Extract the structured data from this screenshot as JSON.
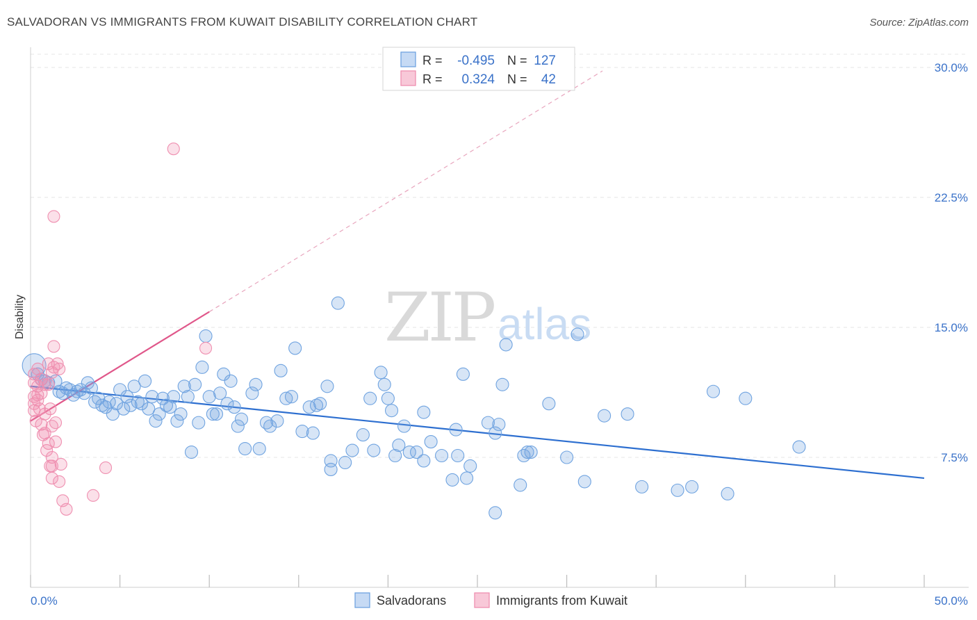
{
  "title": "SALVADORAN VS IMMIGRANTS FROM KUWAIT DISABILITY CORRELATION CHART",
  "source": "Source: ZipAtlas.com",
  "watermark": {
    "part1": "ZIP",
    "part2": "atlas"
  },
  "legend_top": {
    "rows": [
      {
        "r_label": "R =",
        "r_value": "-0.495",
        "n_label": "N =",
        "n_value": "127"
      },
      {
        "r_label": "R =",
        "r_value": "0.324",
        "n_label": "N =",
        "n_value": "42"
      }
    ]
  },
  "legend_bottom": {
    "items": [
      "Salvadorans",
      "Immigrants from Kuwait"
    ]
  },
  "colors": {
    "blue": "#6fa3e0",
    "blue_line": "#2d6fd0",
    "pink": "#ef8fb0",
    "pink_line": "#e0578a",
    "axis_text": "#3a72c9"
  },
  "chart_data": {
    "type": "scatter",
    "title": "SALVADORAN VS IMMIGRANTS FROM KUWAIT DISABILITY CORRELATION CHART",
    "xlabel": "",
    "ylabel": "Disability",
    "xlim": [
      0,
      50
    ],
    "ylim": [
      0,
      31
    ],
    "x_tick_labels": [
      "0.0%",
      "50.0%"
    ],
    "y_ticks": [
      7.5,
      15.0,
      22.5,
      30.0
    ],
    "y_tick_labels": [
      "7.5%",
      "15.0%",
      "22.5%",
      "30.0%"
    ],
    "grid": true,
    "series": [
      {
        "name": "Salvadorans",
        "color": "#6fa3e0",
        "R": -0.495,
        "N": 127,
        "trend": {
          "x": [
            0,
            50
          ],
          "y": [
            11.6,
            6.3
          ]
        },
        "points": [
          [
            0.2,
            12.8
          ],
          [
            0.4,
            12.3
          ],
          [
            0.6,
            12.0
          ],
          [
            0.8,
            11.9
          ],
          [
            1.0,
            11.8
          ],
          [
            1.4,
            11.9
          ],
          [
            1.6,
            11.3
          ],
          [
            1.8,
            11.2
          ],
          [
            2.0,
            11.5
          ],
          [
            2.2,
            11.4
          ],
          [
            2.4,
            11.1
          ],
          [
            2.6,
            11.3
          ],
          [
            2.8,
            11.4
          ],
          [
            3.0,
            11.2
          ],
          [
            3.2,
            11.8
          ],
          [
            3.4,
            11.5
          ],
          [
            3.6,
            10.7
          ],
          [
            3.8,
            10.9
          ],
          [
            4.0,
            10.5
          ],
          [
            4.2,
            10.4
          ],
          [
            4.4,
            10.7
          ],
          [
            4.6,
            10.0
          ],
          [
            4.8,
            10.6
          ],
          [
            5.0,
            11.4
          ],
          [
            5.2,
            10.3
          ],
          [
            5.4,
            11.0
          ],
          [
            5.6,
            10.5
          ],
          [
            5.8,
            11.6
          ],
          [
            6.0,
            10.7
          ],
          [
            6.2,
            10.6
          ],
          [
            6.4,
            11.9
          ],
          [
            6.6,
            10.3
          ],
          [
            6.8,
            11.0
          ],
          [
            7.0,
            9.6
          ],
          [
            7.2,
            10.0
          ],
          [
            7.4,
            10.9
          ],
          [
            7.6,
            10.5
          ],
          [
            7.8,
            10.4
          ],
          [
            8.0,
            11.0
          ],
          [
            8.2,
            9.6
          ],
          [
            8.4,
            10.0
          ],
          [
            8.6,
            11.6
          ],
          [
            8.8,
            11.0
          ],
          [
            9.0,
            7.8
          ],
          [
            9.2,
            11.7
          ],
          [
            9.4,
            9.5
          ],
          [
            9.6,
            12.7
          ],
          [
            9.8,
            14.5
          ],
          [
            10.0,
            11.0
          ],
          [
            10.2,
            10.0
          ],
          [
            10.4,
            10.0
          ],
          [
            10.6,
            11.2
          ],
          [
            10.8,
            12.3
          ],
          [
            11.0,
            10.6
          ],
          [
            11.2,
            11.9
          ],
          [
            11.4,
            10.4
          ],
          [
            11.6,
            9.3
          ],
          [
            11.8,
            9.7
          ],
          [
            12.0,
            8.0
          ],
          [
            12.4,
            11.2
          ],
          [
            12.6,
            11.7
          ],
          [
            12.8,
            8.0
          ],
          [
            13.2,
            9.5
          ],
          [
            13.4,
            9.3
          ],
          [
            13.8,
            9.6
          ],
          [
            14.0,
            12.5
          ],
          [
            14.3,
            10.9
          ],
          [
            14.6,
            11.0
          ],
          [
            14.8,
            13.8
          ],
          [
            15.2,
            9.0
          ],
          [
            15.6,
            10.4
          ],
          [
            15.8,
            8.9
          ],
          [
            16.0,
            10.5
          ],
          [
            16.2,
            10.6
          ],
          [
            16.6,
            11.6
          ],
          [
            16.8,
            7.3
          ],
          [
            16.8,
            6.8
          ],
          [
            17.2,
            16.4
          ],
          [
            17.6,
            7.2
          ],
          [
            18.0,
            7.9
          ],
          [
            18.6,
            8.8
          ],
          [
            19.0,
            10.9
          ],
          [
            19.2,
            7.9
          ],
          [
            19.6,
            12.4
          ],
          [
            19.8,
            11.7
          ],
          [
            20.0,
            10.9
          ],
          [
            20.2,
            10.2
          ],
          [
            20.4,
            7.6
          ],
          [
            20.6,
            8.2
          ],
          [
            20.9,
            9.3
          ],
          [
            21.2,
            7.8
          ],
          [
            21.6,
            7.8
          ],
          [
            22.0,
            10.1
          ],
          [
            22.0,
            7.3
          ],
          [
            22.4,
            8.4
          ],
          [
            23.0,
            7.6
          ],
          [
            23.6,
            6.2
          ],
          [
            23.8,
            9.1
          ],
          [
            23.9,
            7.6
          ],
          [
            24.2,
            12.3
          ],
          [
            24.4,
            6.3
          ],
          [
            24.6,
            7.0
          ],
          [
            25.6,
            9.5
          ],
          [
            26.0,
            8.9
          ],
          [
            26.0,
            4.3
          ],
          [
            26.2,
            9.4
          ],
          [
            26.4,
            11.7
          ],
          [
            26.6,
            14.0
          ],
          [
            27.4,
            5.9
          ],
          [
            27.6,
            7.6
          ],
          [
            27.8,
            7.8
          ],
          [
            28.0,
            7.8
          ],
          [
            29.0,
            10.6
          ],
          [
            30.0,
            7.5
          ],
          [
            30.6,
            14.6
          ],
          [
            31.0,
            6.1
          ],
          [
            32.1,
            9.9
          ],
          [
            33.4,
            10.0
          ],
          [
            34.2,
            5.8
          ],
          [
            36.2,
            5.6
          ],
          [
            37.0,
            5.8
          ],
          [
            38.2,
            11.3
          ],
          [
            39.0,
            5.4
          ],
          [
            40.0,
            10.9
          ],
          [
            43.0,
            8.1
          ]
        ]
      },
      {
        "name": "Immigrants from Kuwait",
        "color": "#ef8fb0",
        "R": 0.324,
        "N": 42,
        "trend": {
          "x": [
            0,
            10
          ],
          "y": [
            9.6,
            15.9
          ]
        },
        "trend_dashed": {
          "x": [
            10,
            32
          ],
          "y": [
            15.9,
            29.8
          ]
        },
        "points": [
          [
            0.2,
            12.3
          ],
          [
            0.2,
            11.8
          ],
          [
            0.2,
            11.0
          ],
          [
            0.2,
            10.6
          ],
          [
            0.2,
            10.2
          ],
          [
            0.3,
            9.6
          ],
          [
            0.4,
            12.6
          ],
          [
            0.4,
            11.6
          ],
          [
            0.4,
            11.1
          ],
          [
            0.4,
            10.8
          ],
          [
            0.5,
            10.3
          ],
          [
            0.6,
            12.0
          ],
          [
            0.6,
            11.2
          ],
          [
            0.6,
            9.4
          ],
          [
            0.7,
            8.8
          ],
          [
            0.8,
            11.7
          ],
          [
            0.8,
            10.0
          ],
          [
            0.8,
            8.9
          ],
          [
            0.9,
            7.9
          ],
          [
            1.0,
            12.9
          ],
          [
            1.0,
            11.7
          ],
          [
            1.0,
            8.3
          ],
          [
            1.1,
            7.0
          ],
          [
            1.1,
            10.3
          ],
          [
            1.2,
            12.4
          ],
          [
            1.2,
            7.5
          ],
          [
            1.2,
            7.0
          ],
          [
            1.2,
            6.3
          ],
          [
            1.2,
            9.3
          ],
          [
            1.3,
            13.9
          ],
          [
            1.3,
            12.7
          ],
          [
            1.3,
            21.4
          ],
          [
            1.4,
            9.5
          ],
          [
            1.4,
            8.4
          ],
          [
            1.5,
            12.9
          ],
          [
            1.6,
            12.6
          ],
          [
            1.6,
            6.1
          ],
          [
            1.7,
            7.1
          ],
          [
            1.8,
            5.0
          ],
          [
            2.0,
            4.5
          ],
          [
            3.5,
            5.3
          ],
          [
            4.2,
            6.9
          ],
          [
            8.0,
            25.3
          ],
          [
            9.8,
            13.8
          ]
        ]
      }
    ]
  }
}
